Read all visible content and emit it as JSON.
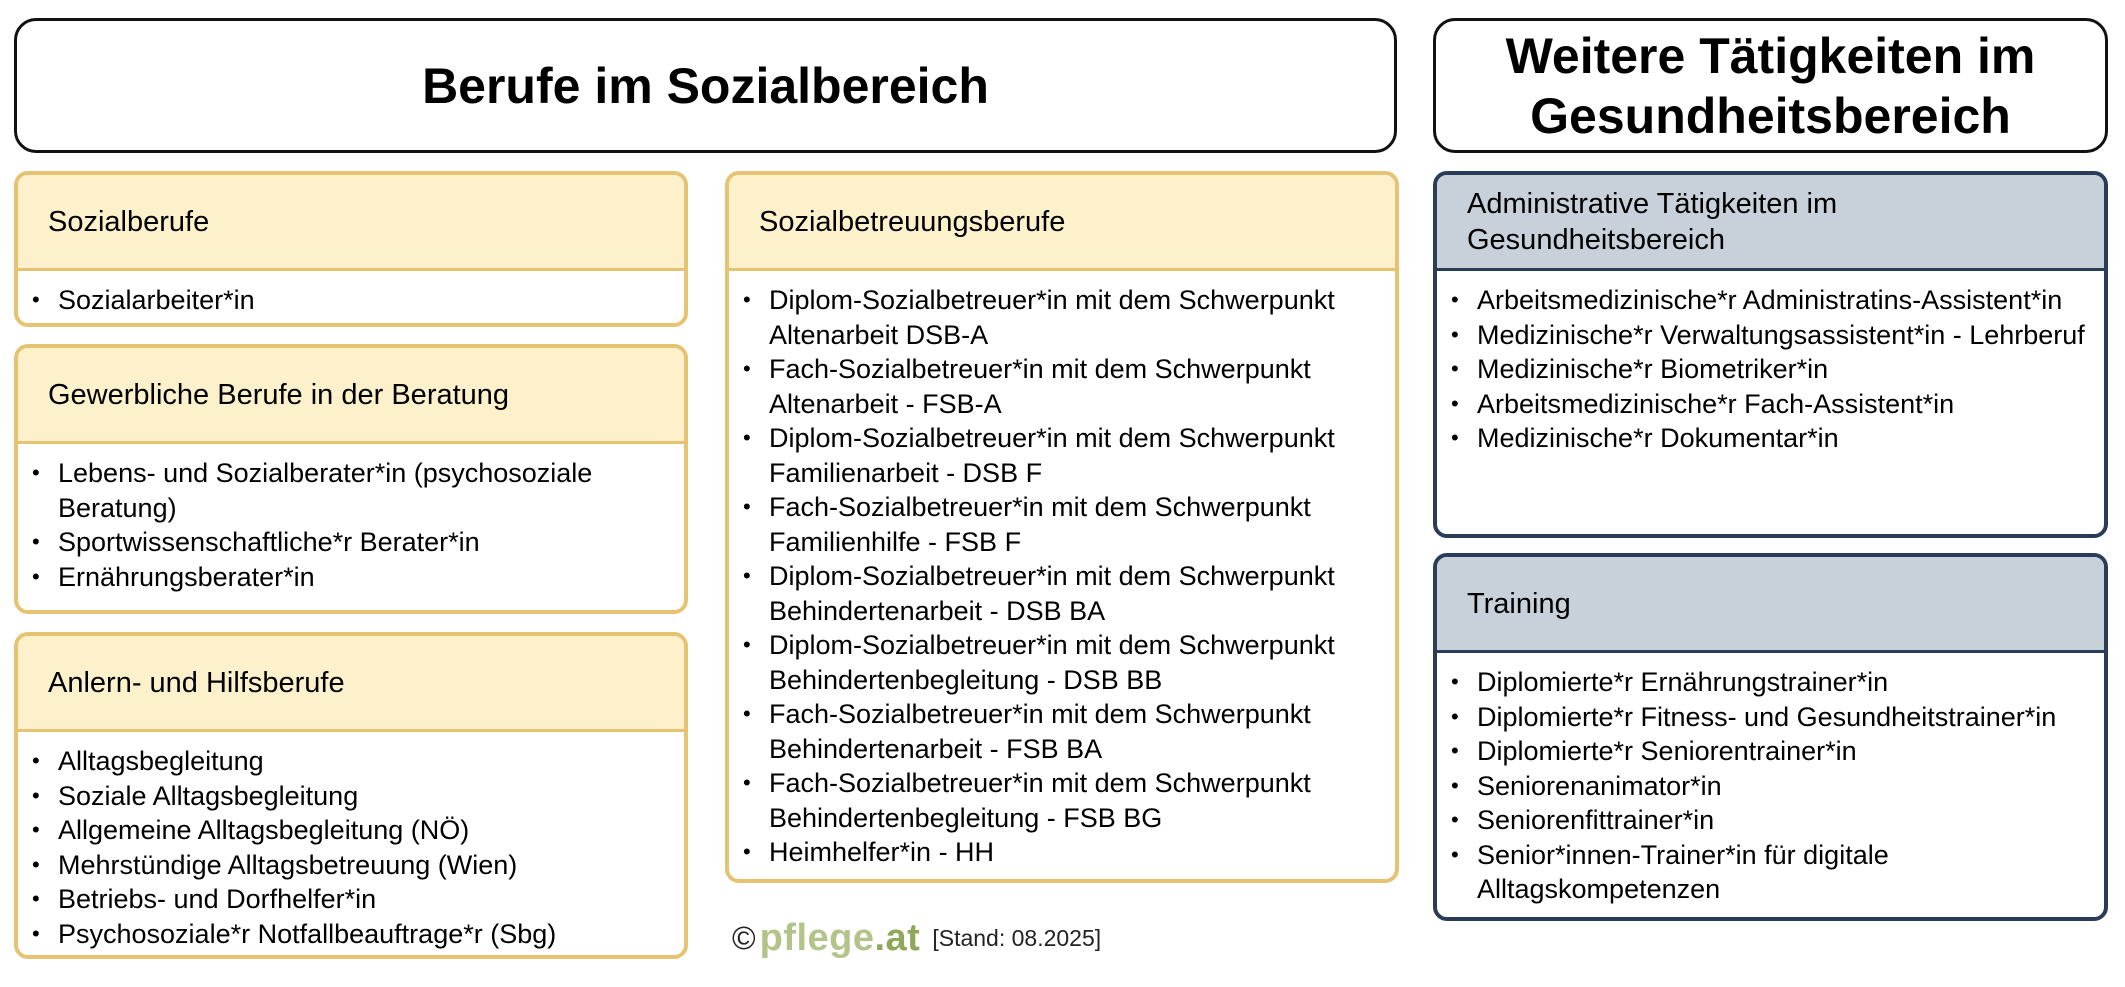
{
  "headers": {
    "left": "Berufe im Sozialbereich",
    "right_line1": "Weitere Tätigkeiten im",
    "right_line2": "Gesundheitsbereich"
  },
  "cards": {
    "sozialberufe": {
      "title": "Sozialberufe",
      "items": [
        "Sozialarbeiter*in"
      ]
    },
    "gewerbliche": {
      "title": "Gewerbliche Berufe in der Beratung",
      "items": [
        "Lebens- und Sozialberater*in (psychosoziale Beratung)",
        "Sportwissenschaftliche*r Berater*in",
        "Ernährungsberater*in"
      ]
    },
    "anlern": {
      "title": "Anlern- und Hilfsberufe",
      "items": [
        "Alltagsbegleitung",
        "Soziale Alltagsbegleitung",
        "Allgemeine Alltagsbegleitung (NÖ)",
        "Mehrstündige Alltagsbetreuung (Wien)",
        "Betriebs- und Dorfhelfer*in",
        "Psychosoziale*r Notfallbeauftrage*r (Sbg)"
      ]
    },
    "sozialbetreuung": {
      "title": "Sozialbetreuungsberufe",
      "items": [
        "Diplom-Sozialbetreuer*in mit dem Schwerpunkt Altenarbeit  DSB-A",
        "Fach-Sozialbetreuer*in mit dem Schwerpunkt Altenarbeit - FSB-A",
        "Diplom-Sozialbetreuer*in mit dem Schwerpunkt Familienarbeit - DSB F",
        "Fach-Sozialbetreuer*in mit dem Schwerpunkt Familienhilfe - FSB F",
        "Diplom-Sozialbetreuer*in mit dem Schwerpunkt Behindertenarbeit - DSB BA",
        "Diplom-Sozialbetreuer*in mit dem Schwerpunkt Behindertenbegleitung - DSB BB",
        "Fach-Sozialbetreuer*in mit dem Schwerpunkt Behindertenarbeit - FSB BA",
        "Fach-Sozialbetreuer*in mit dem Schwerpunkt Behindertenbegleitung - FSB BG",
        "Heimhelfer*in - HH"
      ]
    },
    "administrative": {
      "title": "Administrative Tätigkeiten im Gesundheitsbereich",
      "items": [
        "Arbeitsmedizinische*r Administratins-Assistent*in",
        "Medizinische*r Verwaltungsassistent*in - Lehrberuf",
        "Medizinische*r Biometriker*in",
        "Arbeitsmedizinische*r Fach-Assistent*in",
        "Medizinische*r Dokumentar*in"
      ]
    },
    "training": {
      "title": "Training",
      "items": [
        "Diplomierte*r Ernährungstrainer*in",
        "Diplomierte*r Fitness- und Gesundheitstrainer*in",
        "Diplomierte*r Seniorentrainer*in",
        "Seniorenanimator*in",
        "Seniorenfittrainer*in",
        "Senior*innen-Trainer*in für digitale Alltagskompetenzen"
      ]
    }
  },
  "footer": {
    "copyright": "©",
    "logo_main": "pflege",
    "logo_tld": ".at",
    "stand": "[Stand: 08.2025]"
  },
  "colors": {
    "yellow_border": "#e6c373",
    "yellow_fill": "#fdf1cc",
    "blue_border": "#2a3d58",
    "blue_fill": "#c8d0da",
    "logo_green": "#b3c48a"
  }
}
